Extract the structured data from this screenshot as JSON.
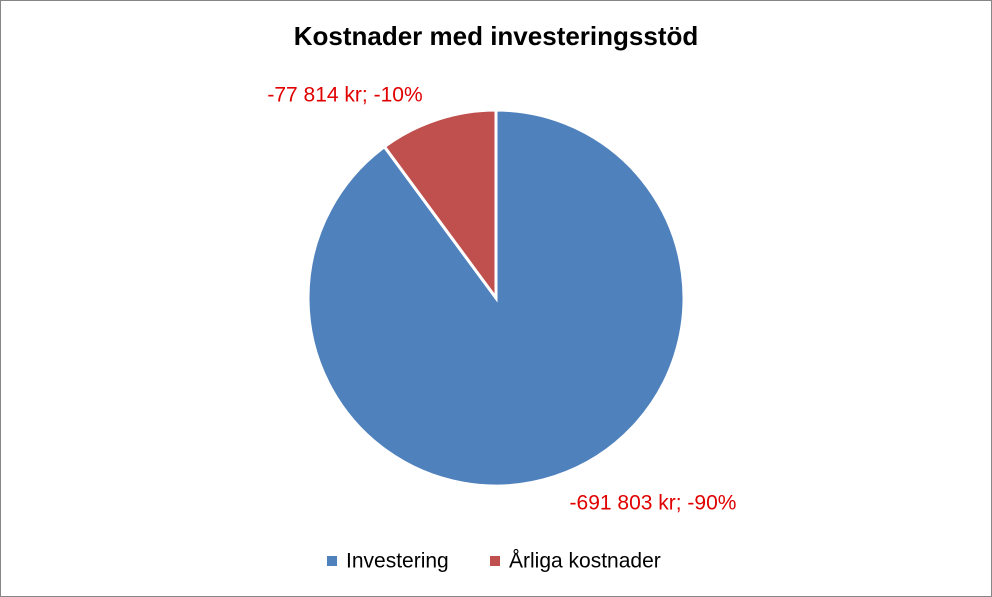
{
  "chart_data": {
    "type": "pie",
    "title": "Kostnader med investeringsstöd",
    "categories": [
      "Investering",
      "Årliga kostnader"
    ],
    "values": [
      -691803,
      -77814
    ],
    "value_labels": [
      "-691 803 kr; -90%",
      "-77 814 kr; -10%"
    ],
    "colors": [
      "#4f81bd",
      "#c0504d"
    ],
    "legend": "bottom"
  }
}
